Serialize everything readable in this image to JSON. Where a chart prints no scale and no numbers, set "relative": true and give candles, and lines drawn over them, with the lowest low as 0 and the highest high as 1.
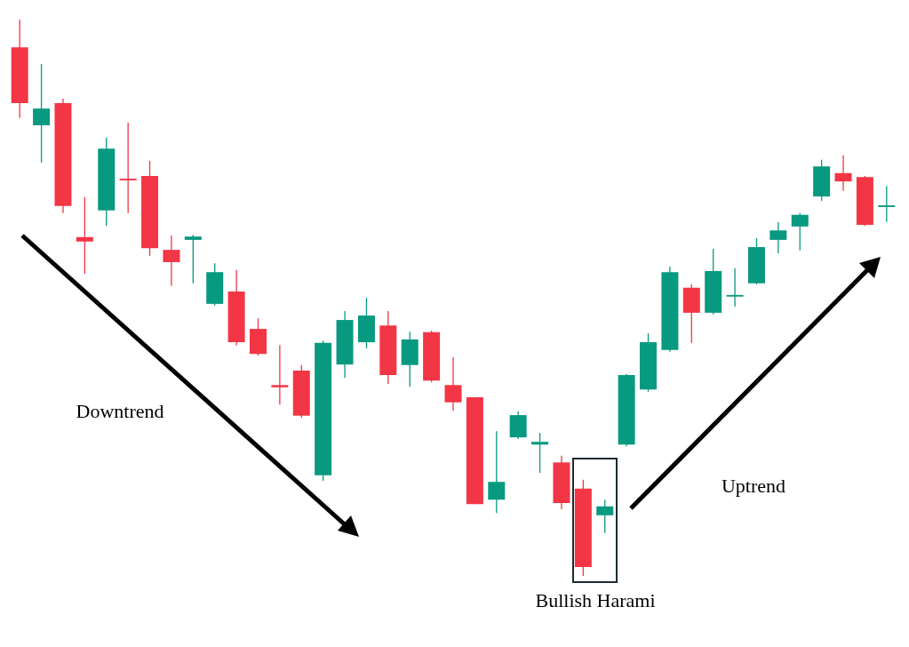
{
  "chart_data": {
    "type": "candlestick",
    "relative": true,
    "categories": [
      null,
      null,
      null,
      null,
      null,
      null,
      null,
      null,
      null,
      null,
      null,
      null,
      null,
      null,
      null,
      null,
      null,
      null,
      null,
      null,
      null,
      null,
      null,
      null,
      null,
      null,
      null,
      null,
      null,
      null,
      null,
      null,
      null,
      null,
      null,
      null,
      null,
      null,
      null,
      null,
      null
    ],
    "ohlc": [
      [
        0.95,
        1.0,
        0.823,
        0.85
      ],
      [
        0.81,
        0.92,
        0.743,
        0.84
      ],
      [
        0.85,
        0.858,
        0.652,
        0.665
      ],
      [
        0.609,
        0.681,
        0.543,
        0.601
      ],
      [
        0.657,
        0.788,
        0.629,
        0.768
      ],
      [
        0.714,
        0.815,
        0.652,
        0.711
      ],
      [
        0.719,
        0.746,
        0.575,
        0.589
      ],
      [
        0.586,
        0.612,
        0.521,
        0.564
      ],
      [
        0.604,
        0.613,
        0.526,
        0.61
      ],
      [
        0.489,
        0.562,
        0.486,
        0.546
      ],
      [
        0.511,
        0.55,
        0.414,
        0.42
      ],
      [
        0.444,
        0.463,
        0.396,
        0.399
      ],
      [
        0.343,
        0.415,
        0.308,
        0.339
      ],
      [
        0.369,
        0.379,
        0.284,
        0.288
      ],
      [
        0.181,
        0.423,
        0.171,
        0.419
      ],
      [
        0.38,
        0.476,
        0.356,
        0.46
      ],
      [
        0.42,
        0.5,
        0.409,
        0.468
      ],
      [
        0.45,
        0.476,
        0.345,
        0.361
      ],
      [
        0.379,
        0.439,
        0.34,
        0.425
      ],
      [
        0.438,
        0.441,
        0.348,
        0.351
      ],
      [
        0.343,
        0.393,
        0.297,
        0.312
      ],
      [
        0.321,
        0.321,
        0.129,
        0.129
      ],
      [
        0.137,
        0.26,
        0.113,
        0.169
      ],
      [
        0.249,
        0.296,
        0.246,
        0.289
      ],
      [
        0.236,
        0.257,
        0.185,
        0.241
      ],
      [
        0.204,
        0.216,
        0.12,
        0.131
      ],
      [
        0.157,
        0.173,
        0.0,
        0.016
      ],
      [
        0.109,
        0.137,
        0.077,
        0.125
      ],
      [
        0.236,
        0.363,
        0.233,
        0.361
      ],
      [
        0.335,
        0.436,
        0.331,
        0.42
      ],
      [
        0.406,
        0.556,
        0.403,
        0.546
      ],
      [
        0.518,
        0.524,
        0.419,
        0.473
      ],
      [
        0.473,
        0.588,
        0.47,
        0.548
      ],
      [
        0.502,
        0.553,
        0.484,
        0.505
      ],
      [
        0.526,
        0.607,
        0.524,
        0.591
      ],
      [
        0.604,
        0.636,
        0.58,
        0.621
      ],
      [
        0.628,
        0.652,
        0.585,
        0.649
      ],
      [
        0.682,
        0.748,
        0.674,
        0.736
      ],
      [
        0.724,
        0.756,
        0.692,
        0.709
      ],
      [
        0.717,
        0.719,
        0.629,
        0.631
      ],
      [
        0.663,
        0.701,
        0.636,
        0.666
      ]
    ],
    "colors": [
      "#f23645",
      "#089981",
      "#f23645",
      "#f23645",
      "#089981",
      "#f23645",
      "#f23645",
      "#f23645",
      "#089981",
      "#089981",
      "#f23645",
      "#f23645",
      "#f23645",
      "#f23645",
      "#089981",
      "#089981",
      "#089981",
      "#f23645",
      "#089981",
      "#f23645",
      "#f23645",
      "#f23645",
      "#089981",
      "#089981",
      "#089981",
      "#f23645",
      "#f23645",
      "#089981",
      "#089981",
      "#089981",
      "#089981",
      "#f23645",
      "#089981",
      "#089981",
      "#089981",
      "#089981",
      "#089981",
      "#089981",
      "#f23645",
      "#f23645",
      "#089981"
    ],
    "annotations": [
      "Downtrend",
      "Uptrend",
      "Bullish Harami"
    ]
  }
}
